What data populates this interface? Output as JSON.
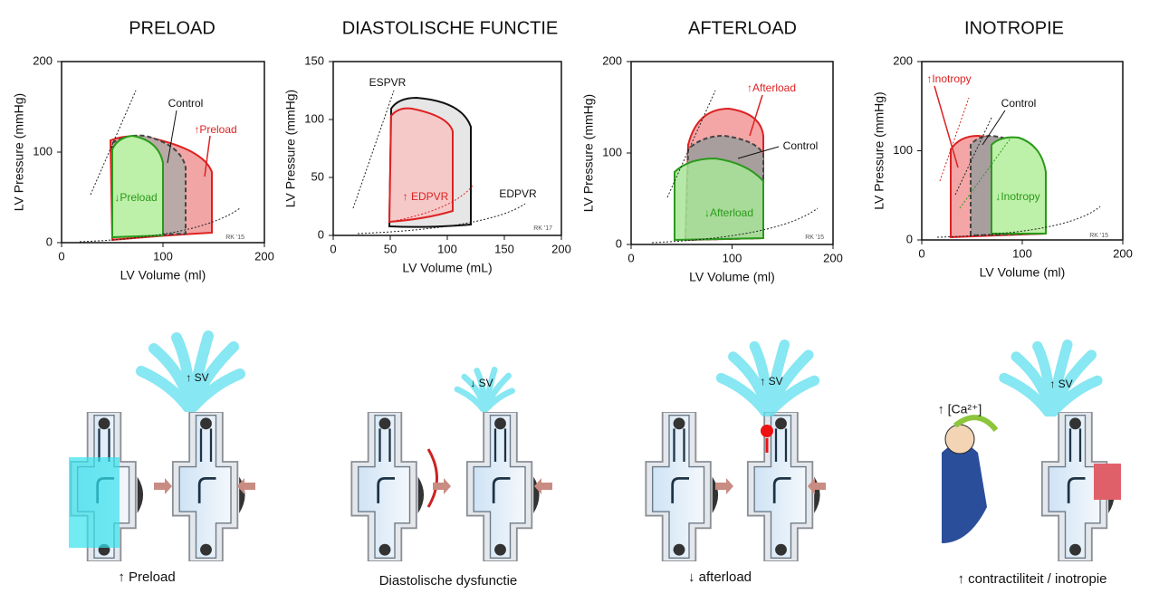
{
  "panels": [
    {
      "title": "PRELOAD",
      "y_label": "LV Pressure (mmHg)",
      "x_label": "LV Volume (ml)",
      "yticks": [
        0,
        100,
        200
      ],
      "xticks": [
        0,
        100,
        200
      ],
      "annotations": [
        "Control",
        "↑Preload",
        "↓Preload"
      ],
      "signature": "RK '15",
      "sv": "↑ SV",
      "caption": "↑ Preload"
    },
    {
      "title": "DIASTOLISCHE FUNCTIE",
      "y_label": "LV Pressure (mmHg)",
      "x_label": "LV Volume (mL)",
      "yticks": [
        0,
        50,
        100,
        150
      ],
      "xticks": [
        0,
        50,
        100,
        150,
        200
      ],
      "annotations": [
        "ESPVR",
        "↑ EDPVR",
        "EDPVR"
      ],
      "signature": "RK '17",
      "sv": "↓ SV",
      "caption": "Diastolische dysfunctie"
    },
    {
      "title": "AFTERLOAD",
      "y_label": "LV Pressure (mmHg)",
      "x_label": "LV Volume (ml)",
      "yticks": [
        0,
        100,
        200
      ],
      "xticks": [
        0,
        100,
        200
      ],
      "annotations": [
        "↑Afterload",
        "Control",
        "↓Afterload"
      ],
      "signature": "RK '15",
      "sv": "↑ SV",
      "caption": "↓ afterload"
    },
    {
      "title": "INOTROPIE",
      "y_label": "LV Pressure (mmHg)",
      "x_label": "LV Volume (ml)",
      "yticks": [
        0,
        100,
        200
      ],
      "xticks": [
        0,
        100,
        200
      ],
      "annotations": [
        "↑Inotropy",
        "Control",
        "↓Inotropy"
      ],
      "signature": "RK '15",
      "sv": "↑ SV",
      "caption": "↑ contractiliteit / inotropie",
      "calcium": "↑ [Ca²⁺]"
    }
  ]
}
